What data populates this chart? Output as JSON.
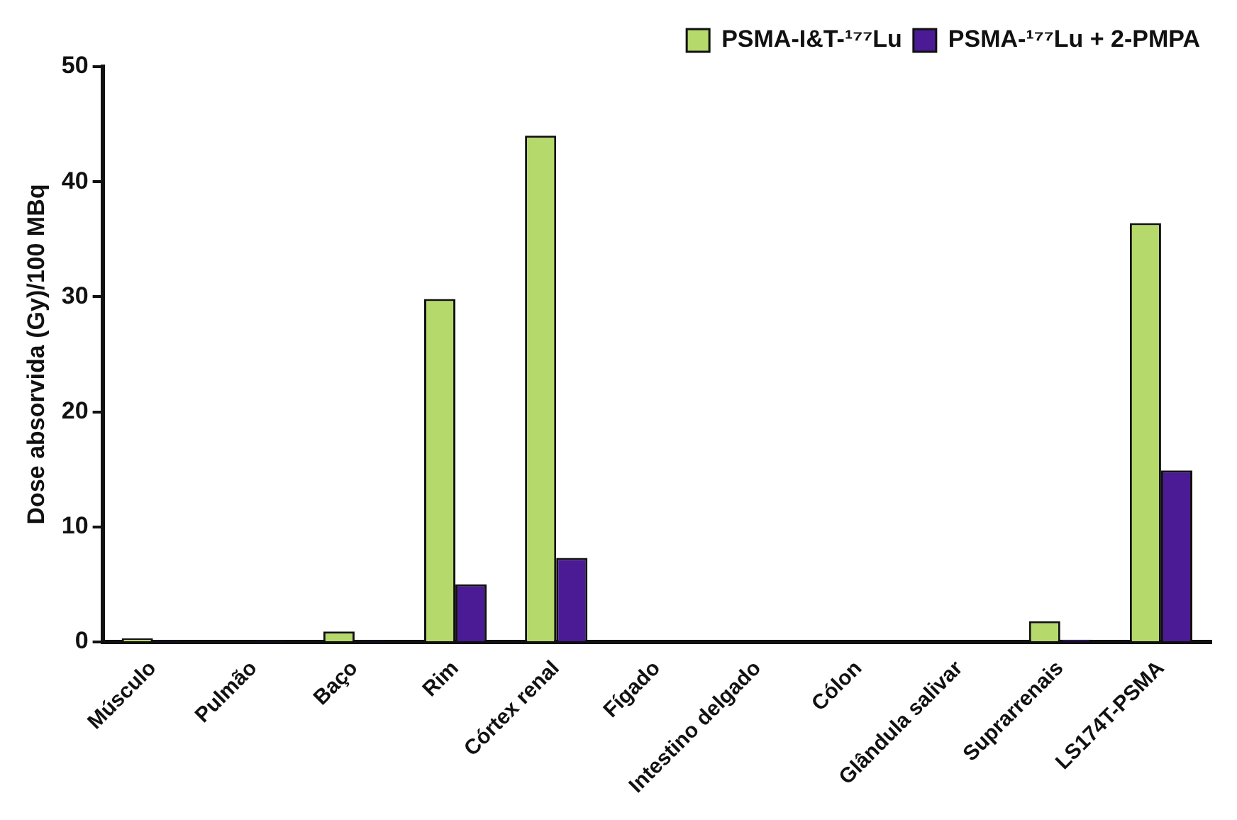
{
  "chart_data": {
    "type": "bar",
    "ylabel": "Dose absorvida (Gy)/100 MBq",
    "categories": [
      "Músculo",
      "Pulmão",
      "Baço",
      "Rim",
      "Córtex renal",
      "Fígado",
      "Intestino delgado",
      "Cólon",
      "Glândula salivar",
      "Suprarrenais",
      "LS174T-PSMA"
    ],
    "series": [
      {
        "name": "PSMA-I&T-¹⁷⁷Lu",
        "color": "#b5d96a",
        "values": [
          0.3,
          null,
          0.9,
          29.8,
          44,
          0,
          0,
          0,
          0,
          1.8,
          36.4
        ]
      },
      {
        "name": "PSMA-¹⁷⁷Lu + 2-PMPA",
        "color": "#4b1a95",
        "values": [
          0.1,
          0.1,
          0.1,
          5.0,
          7.3,
          0,
          0,
          0,
          0,
          0.2,
          14.9
        ]
      }
    ],
    "ylim": [
      0,
      50
    ],
    "yticks": [
      0,
      10,
      20,
      30,
      40,
      50
    ],
    "grid": false,
    "legend": "top right"
  }
}
